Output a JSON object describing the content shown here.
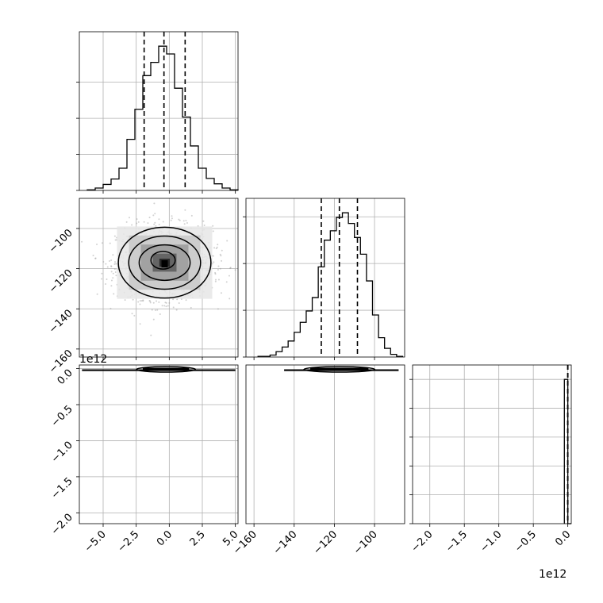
{
  "chart_data": [
    {
      "type": "histogram",
      "panel": "p11",
      "x_ticks": [
        -5.0,
        -2.5,
        0.0,
        2.5,
        5.0
      ],
      "xlim": [
        -6.8,
        5.2
      ],
      "bin_edges": [
        -6.2,
        -5.6,
        -5.0,
        -4.4,
        -3.8,
        -3.2,
        -2.6,
        -2.0,
        -1.4,
        -0.8,
        -0.2,
        0.4,
        1.0,
        1.6,
        2.2,
        2.8,
        3.4,
        4.0,
        4.6,
        5.2
      ],
      "counts": [
        1,
        4,
        10,
        19,
        37,
        85,
        135,
        191,
        213,
        240,
        227,
        170,
        122,
        74,
        37,
        20,
        11,
        4,
        1
      ],
      "quantiles": [
        -1.9,
        -0.4,
        1.2
      ],
      "y_grid": [
        60,
        120,
        180
      ]
    },
    {
      "type": "histogram",
      "panel": "p22",
      "x_ticks": [
        -160,
        -140,
        -120,
        -100
      ],
      "xlim": [
        -164,
        -85
      ],
      "bin_edges": [
        -158,
        -155,
        -152,
        -149,
        -146,
        -143,
        -140,
        -137,
        -134,
        -131,
        -128,
        -125,
        -122,
        -119,
        -116,
        -113,
        -110,
        -107,
        -104,
        -101,
        -98,
        -95,
        -92,
        -89,
        -86
      ],
      "counts": [
        1,
        1,
        3,
        8,
        15,
        24,
        37,
        52,
        69,
        89,
        135,
        175,
        189,
        209,
        216,
        200,
        179,
        154,
        114,
        63,
        29,
        13,
        4,
        1
      ],
      "quantiles": [
        -126.5,
        -117.5,
        -108.5
      ],
      "y_grid": [
        70,
        140,
        210
      ]
    },
    {
      "type": "histogram",
      "panel": "p33",
      "x_ticks": [
        -2.0,
        -1.5,
        -1.0,
        -0.5,
        0.0
      ],
      "x_tick_labels": [
        "−2.0",
        "−1.5",
        "−1.0",
        "−0.5",
        "0.0"
      ],
      "xlim": [
        -2.25,
        0.05
      ],
      "bin_edges": [
        -0.05,
        0.0,
        0.05
      ],
      "counts": [
        5000,
        0
      ],
      "quantiles": [
        -0.001,
        0.0,
        0.001
      ],
      "y_grid": [
        1000,
        2000,
        3000,
        4000,
        5000
      ],
      "offset_label": "1e12"
    },
    {
      "type": "scatter-contour",
      "panel": "p21",
      "x_ticks": [
        -5.0,
        -2.5,
        0.0,
        2.5,
        5.0
      ],
      "y_ticks": [
        -100,
        -120,
        -140,
        -160
      ],
      "xlim": [
        -6.8,
        5.2
      ],
      "ylim": [
        -164,
        -85
      ],
      "center": [
        -0.35,
        -117.0
      ],
      "contours_sigma": [
        0.5,
        1.0,
        1.5,
        2.0
      ],
      "sigma": [
        1.8,
        9.0
      ]
    },
    {
      "type": "scatter-contour",
      "panel": "p31",
      "x_ticks": [
        -5.0,
        -2.5,
        0.0,
        2.5,
        5.0
      ],
      "y_ticks": [
        0.0,
        -0.5,
        -1.0,
        -1.5,
        -2.0
      ],
      "y_tick_labels": [
        "0.0",
        "−0.5",
        "−1.0",
        "−1.5",
        "−2.0"
      ],
      "x_tick_labels": [
        "−5.0",
        "−2.5",
        "0.0",
        "2.5",
        "5.0"
      ],
      "xlim": [
        -6.8,
        5.2
      ],
      "ylim": [
        -2.15,
        0.05
      ],
      "offset_label": "1e12"
    },
    {
      "type": "scatter-contour",
      "panel": "p32",
      "x_ticks": [
        -160,
        -140,
        -120,
        -100
      ],
      "x_tick_labels": [
        "−160",
        "−140",
        "−120",
        "−100"
      ],
      "xlim": [
        -164,
        -85
      ],
      "ylim": [
        -2.15,
        0.05
      ]
    }
  ],
  "p21_y_tick_labels": [
    "−100",
    "−120",
    "−140",
    "−160"
  ],
  "offset_labels": {
    "left_col": "1e12",
    "bottom_right": "1e12"
  }
}
